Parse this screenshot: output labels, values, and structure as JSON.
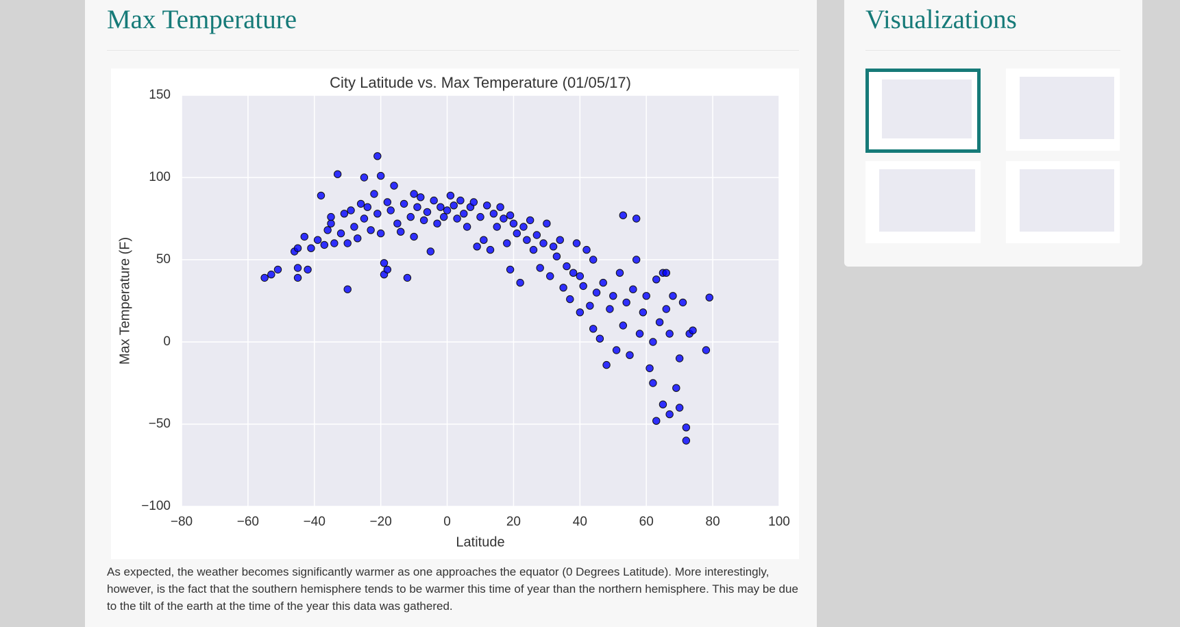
{
  "page": {
    "main_title": "Max Temperature",
    "sidebar_title": "Visualizations",
    "caption": "As expected, the weather becomes significantly warmer as one approaches the equator (0 Degrees Latitude). More interestingly, however, is the fact that the southern hemisphere tends to be warmer this time of year than the northern hemisphere. This may be due to the tilt of the earth at the time of the year this data was gathered."
  },
  "chart_data": {
    "type": "scatter",
    "title": "City Latitude vs. Max Temperature (01/05/17)",
    "x_label": "Latitude",
    "y_label": "Max Temperature (F)",
    "color": "#0000ff",
    "grid": true,
    "xlim": [
      -80,
      100
    ],
    "ylim": [
      -100,
      150
    ],
    "xticks": [
      {
        "value": -80,
        "label": "−80"
      },
      {
        "value": -60,
        "label": "−60"
      },
      {
        "value": -40,
        "label": "−40"
      },
      {
        "value": -20,
        "label": "−20"
      },
      0,
      20,
      40,
      60,
      80,
      100
    ],
    "yticks": [
      {
        "value": -100,
        "label": "−100"
      },
      {
        "value": -50,
        "label": "−50"
      },
      0,
      50,
      100,
      150
    ],
    "x": [
      -55,
      -53,
      -51,
      -46,
      -45,
      -45,
      -45,
      -43,
      -42,
      -41,
      -39,
      -38,
      -37,
      -36,
      -35,
      -35,
      -34,
      -33,
      -32,
      -31,
      -30,
      -30,
      -29,
      -28,
      -27,
      -26,
      -25,
      -25,
      -24,
      -23,
      -22,
      -21,
      -21,
      -20,
      -20,
      -19,
      -19,
      -18,
      -18,
      -17,
      -16,
      -15,
      -14,
      -13,
      -12,
      -11,
      -10,
      -10,
      -9,
      -8,
      -7,
      -6,
      -5,
      -4,
      -3,
      -2,
      -1,
      0,
      1,
      2,
      3,
      4,
      5,
      6,
      7,
      8,
      9,
      10,
      11,
      12,
      13,
      14,
      15,
      16,
      17,
      18,
      19,
      19,
      20,
      21,
      22,
      23,
      24,
      25,
      26,
      27,
      28,
      29,
      30,
      31,
      32,
      33,
      34,
      35,
      36,
      37,
      38,
      39,
      40,
      41,
      42,
      43,
      44,
      45,
      46,
      47,
      48,
      49,
      50,
      51,
      52,
      53,
      53,
      54,
      55,
      56,
      57,
      57,
      58,
      59,
      60,
      61,
      62,
      62,
      63,
      63,
      64,
      65,
      65,
      66,
      67,
      67,
      68,
      69,
      70,
      70,
      71,
      72,
      72,
      73,
      74,
      78,
      79,
      66,
      44,
      40
    ],
    "y": [
      39,
      41,
      44,
      55,
      57,
      45,
      39,
      64,
      44,
      57,
      62,
      89,
      59,
      68,
      72,
      76,
      60,
      102,
      66,
      78,
      32,
      60,
      80,
      70,
      63,
      84,
      100,
      75,
      82,
      68,
      90,
      113,
      78,
      101,
      66,
      48,
      41,
      85,
      44,
      80,
      95,
      72,
      67,
      84,
      39,
      76,
      90,
      64,
      82,
      88,
      74,
      79,
      55,
      86,
      72,
      82,
      76,
      80,
      89,
      83,
      75,
      86,
      78,
      70,
      82,
      85,
      58,
      76,
      62,
      83,
      56,
      78,
      70,
      82,
      75,
      60,
      77,
      44,
      72,
      66,
      36,
      70,
      62,
      74,
      56,
      65,
      45,
      60,
      72,
      40,
      58,
      52,
      62,
      33,
      46,
      26,
      42,
      60,
      18,
      34,
      56,
      22,
      8,
      30,
      2,
      36,
      -14,
      20,
      28,
      -5,
      42,
      77,
      10,
      24,
      -8,
      32,
      50,
      75,
      5,
      18,
      28,
      -16,
      -25,
      0,
      38,
      -48,
      12,
      -38,
      42,
      20,
      -44,
      5,
      28,
      -28,
      -40,
      -10,
      24,
      -60,
      -52,
      5,
      7,
      -5,
      27,
      42,
      50,
      40
    ]
  }
}
